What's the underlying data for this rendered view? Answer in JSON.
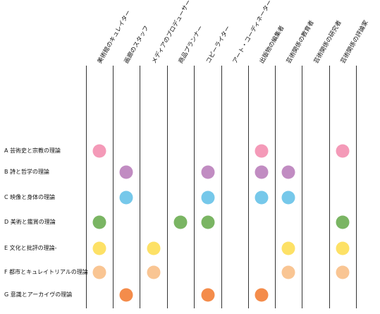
{
  "columns": [
    "美術館のキュレイター",
    "画廊のスタッフ",
    "メディアのプロデューサー",
    "商品プランナー",
    "コピーライター",
    "アート・コーディネーター",
    "出版物の編集者",
    "芸術関係の教育者",
    "芸術関係の研究者",
    "芸術関係の評論家"
  ],
  "rows": [
    {
      "label": "A 芸術史と宗教の理論",
      "color": "#f49ab8",
      "cols": [
        0,
        6,
        9
      ]
    },
    {
      "label": "B 詩と哲学の理論",
      "color": "#c18cc2",
      "cols": [
        1,
        4,
        6,
        7
      ]
    },
    {
      "label": "C 映像と身体の理論",
      "color": "#76c8ea",
      "cols": [
        1,
        4,
        6,
        7
      ]
    },
    {
      "label": "D 美術と鑑賞の理論",
      "color": "#7ab563",
      "cols": [
        0,
        3,
        4,
        9
      ]
    },
    {
      "label": "E 文化と批評の理論-",
      "color": "#fde166",
      "cols": [
        0,
        2,
        7,
        9
      ]
    },
    {
      "label": "F 都市とキュレイトリアルの理論",
      "color": "#f9c593",
      "cols": [
        0,
        2,
        7,
        9
      ]
    },
    {
      "label": "G 意識とアーカイヴの理論",
      "color": "#f48c4b",
      "cols": [
        1,
        4,
        6
      ]
    }
  ]
}
